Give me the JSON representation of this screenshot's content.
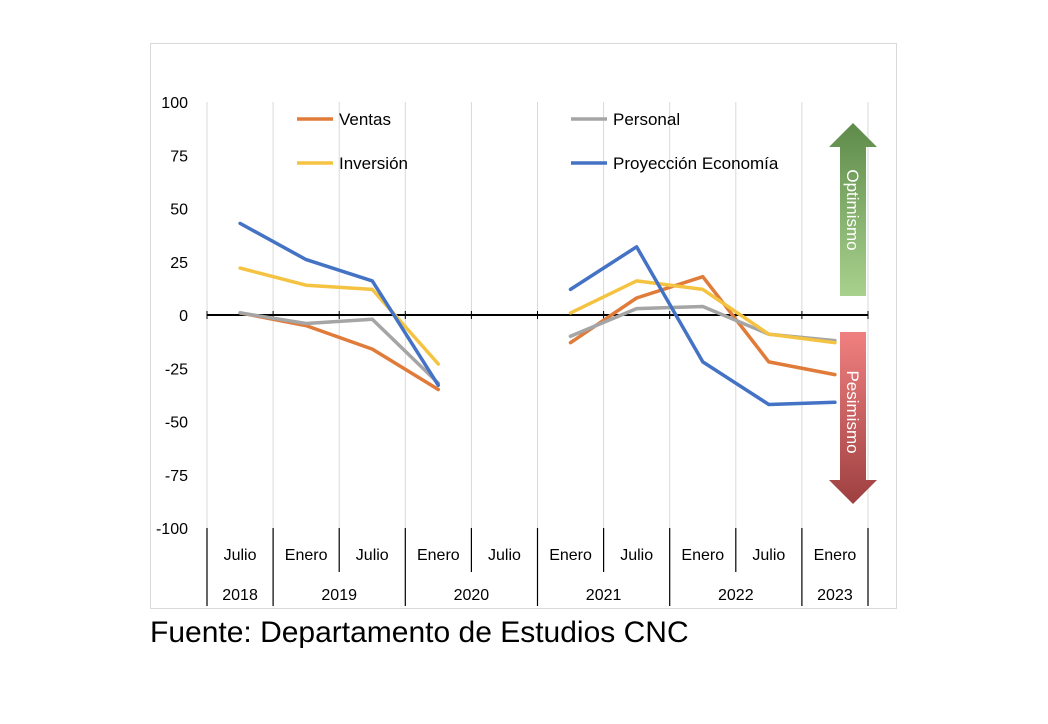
{
  "chart_data": {
    "type": "line",
    "title": "",
    "xlabel": "",
    "ylabel": "",
    "ylim": [
      -100,
      100
    ],
    "yticks": [
      100,
      75,
      50,
      25,
      0,
      -25,
      -50,
      -75,
      -100
    ],
    "categories": [
      "Julio",
      "Enero",
      "Julio",
      "Enero",
      "Julio",
      "Enero",
      "Julio",
      "Enero",
      "Julio",
      "Enero"
    ],
    "year_groups": [
      {
        "label": "2018",
        "span": 1
      },
      {
        "label": "2019",
        "span": 2
      },
      {
        "label": "2020",
        "span": 2
      },
      {
        "label": "2021",
        "span": 2
      },
      {
        "label": "2022",
        "span": 2
      },
      {
        "label": "2023",
        "span": 1
      }
    ],
    "series": [
      {
        "name": "Ventas",
        "color": "#E07B39",
        "values": [
          1,
          -5,
          -16,
          -35,
          null,
          -13,
          8,
          18,
          -22,
          -28
        ]
      },
      {
        "name": "Personal",
        "color": "#A5A5A5",
        "values": [
          1,
          -4,
          -2,
          -32,
          null,
          -10,
          3,
          4,
          -9,
          -12
        ]
      },
      {
        "name": "Inversión",
        "color": "#F5C342",
        "values": [
          22,
          14,
          12,
          -23,
          null,
          1,
          16,
          12,
          -9,
          -13
        ]
      },
      {
        "name": "Proyección Economía",
        "color": "#4472C4",
        "values": [
          43,
          26,
          16,
          -33,
          null,
          12,
          32,
          -22,
          -42,
          -41
        ]
      }
    ],
    "legend_position": "top",
    "grid": "vertical",
    "arrows": [
      {
        "label": "Optimismo",
        "direction": "up",
        "color_top": "#5E8B4A",
        "color_bottom": "#A9D18E"
      },
      {
        "label": "Pesimismo",
        "direction": "down",
        "color_top": "#F08080",
        "color_bottom": "#9E4040"
      }
    ]
  },
  "source": "Fuente: Departamento de Estudios CNC"
}
